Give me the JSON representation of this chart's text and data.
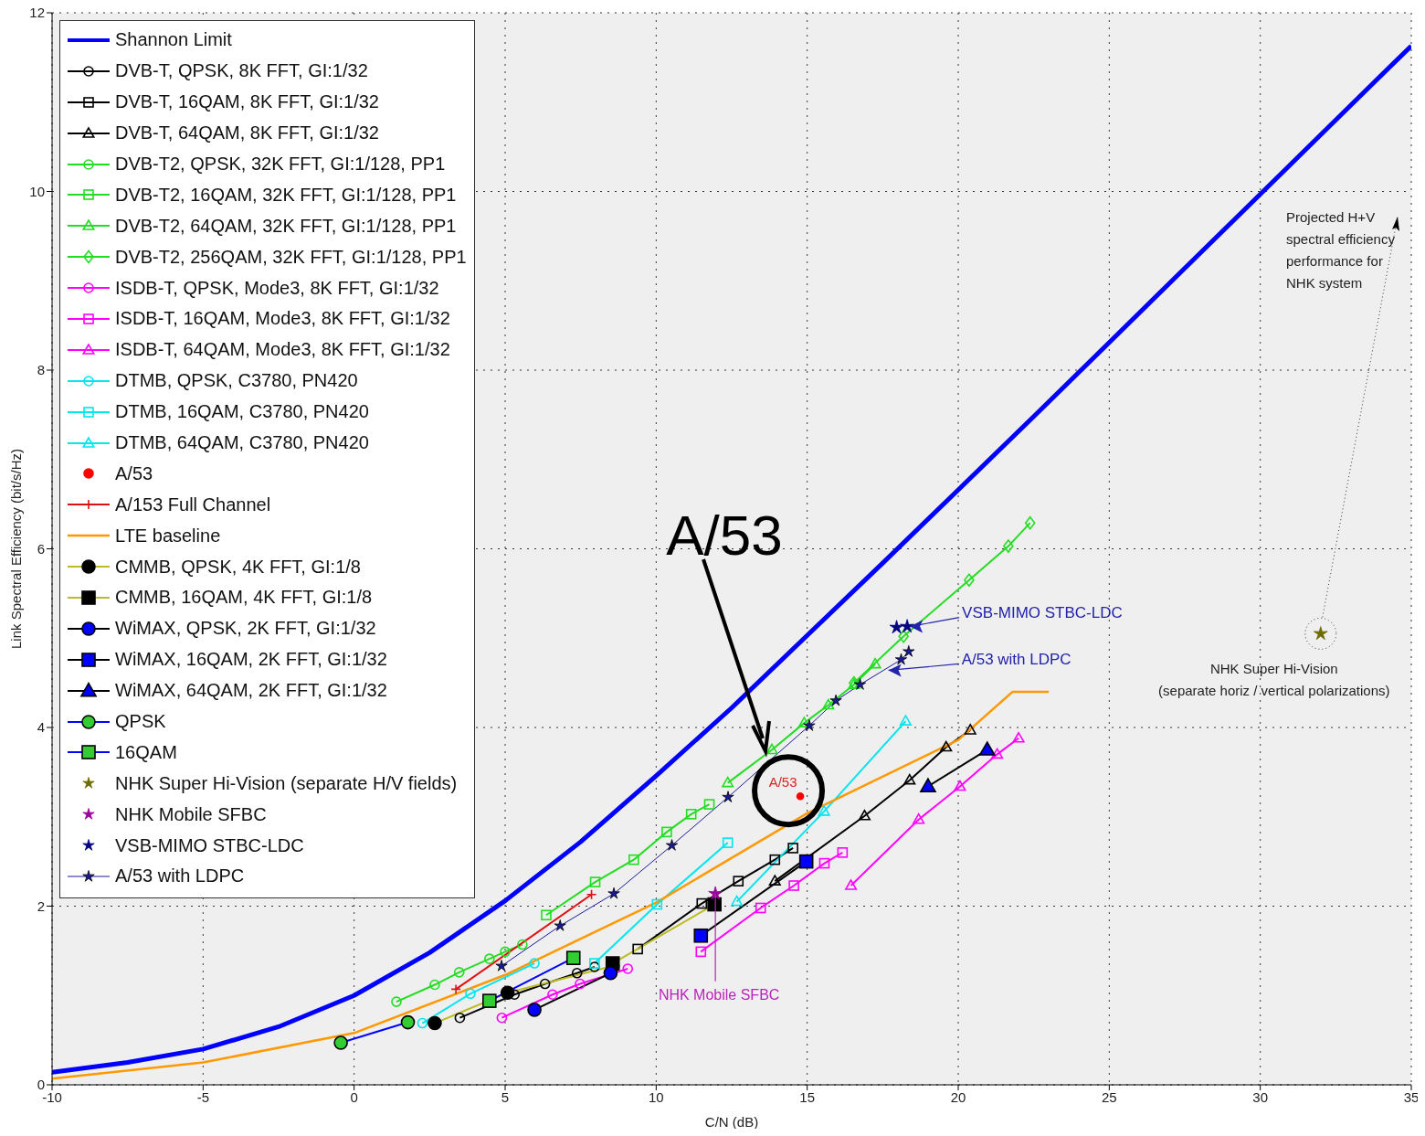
{
  "chart_data": {
    "type": "line",
    "xlabel": "C/N (dB)",
    "ylabel": "Link Spectral Efficiency (bit/s/Hz)",
    "xlim": [
      -10,
      35
    ],
    "ylim": [
      0,
      12
    ],
    "xticks": [
      -10,
      -5,
      0,
      5,
      10,
      15,
      20,
      25,
      30,
      35
    ],
    "yticks": [
      0,
      2,
      4,
      6,
      8,
      10,
      12
    ],
    "grid": true,
    "legend": "top left",
    "series": [
      {
        "name": "Shannon Limit",
        "color": "#0000ff",
        "marker": "none",
        "x": [
          -10,
          -7.5,
          -5,
          -2.5,
          0,
          2.5,
          5,
          7.5,
          10,
          12.5,
          15,
          17.5,
          20,
          22.5,
          25,
          27.5,
          30,
          32.5,
          35
        ],
        "values": [
          0.14,
          0.25,
          0.4,
          0.65,
          1.0,
          1.48,
          2.06,
          2.72,
          3.46,
          4.22,
          5.03,
          5.84,
          6.66,
          7.48,
          8.31,
          9.14,
          9.97,
          10.8,
          11.63
        ]
      },
      {
        "name": "DVB-T, QPSK, 8K FFT, GI:1/32",
        "color": "#000000",
        "marker": "circle",
        "x": [
          3.5,
          5.31,
          6.32,
          7.38,
          7.96
        ],
        "values": [
          0.75,
          1.01,
          1.13,
          1.25,
          1.32
        ]
      },
      {
        "name": "DVB-T, 16QAM, 8K FFT, GI:1/32",
        "color": "#000000",
        "marker": "square",
        "x": [
          9.39,
          11.51,
          12.72,
          13.93,
          14.53
        ],
        "values": [
          1.52,
          2.03,
          2.28,
          2.52,
          2.65
        ]
      },
      {
        "name": "DVB-T, 64QAM, 8K FFT, GI:1/32",
        "color": "#000000",
        "marker": "triangle",
        "x": [
          13.93,
          16.9,
          18.39,
          19.6,
          20.4
        ],
        "values": [
          2.28,
          3.01,
          3.41,
          3.78,
          3.97
        ]
      },
      {
        "name": "DVB-T2, QPSK, 32K FFT, GI:1/128, PP1",
        "color": "#22dd22",
        "marker": "circle",
        "x": [
          1.4,
          2.67,
          3.48,
          4.48,
          5.0,
          5.57
        ],
        "values": [
          0.93,
          1.12,
          1.26,
          1.41,
          1.49,
          1.57
        ]
      },
      {
        "name": "DVB-T2, 16QAM, 32K FFT, GI:1/128, PP1",
        "color": "#22dd22",
        "marker": "square",
        "x": [
          6.36,
          7.98,
          9.26,
          10.35,
          11.16,
          11.76
        ],
        "values": [
          1.9,
          2.27,
          2.52,
          2.83,
          3.03,
          3.14
        ]
      },
      {
        "name": "DVB-T2, 64QAM, 32K FFT, GI:1/128, PP1",
        "color": "#22dd22",
        "marker": "triangle",
        "x": [
          12.37,
          13.83,
          14.9,
          15.7,
          16.55,
          17.25
        ],
        "values": [
          3.38,
          3.75,
          4.05,
          4.25,
          4.48,
          4.71
        ]
      },
      {
        "name": "DVB-T2, 256QAM, 32K FFT, GI:1/128, PP1",
        "color": "#22dd22",
        "marker": "diamond",
        "x": [
          16.55,
          18.19,
          20.36,
          21.66,
          22.38
        ],
        "values": [
          4.5,
          5.02,
          5.65,
          6.03,
          6.29
        ]
      },
      {
        "name": "ISDB-T, QPSK, Mode3, 8K FFT, GI:1/32",
        "color": "#ff00ff",
        "marker": "circle",
        "x": [
          4.89,
          6.57,
          7.48,
          9.06
        ],
        "values": [
          0.75,
          1.01,
          1.13,
          1.3
        ]
      },
      {
        "name": "ISDB-T, 16QAM, Mode3, 8K FFT, GI:1/32",
        "color": "#ff00ff",
        "marker": "square",
        "x": [
          11.48,
          13.46,
          14.56,
          15.57,
          16.17
        ],
        "values": [
          1.49,
          1.98,
          2.23,
          2.48,
          2.6
        ]
      },
      {
        "name": "ISDB-T, 64QAM, Mode3, 8K FFT, GI:1/32",
        "color": "#ff00ff",
        "marker": "triangle",
        "x": [
          16.45,
          18.69,
          20.06,
          21.29,
          22.0
        ],
        "values": [
          2.23,
          2.97,
          3.34,
          3.7,
          3.88
        ]
      },
      {
        "name": "DTMB, QPSK, C3780, PN420",
        "color": "#00e5ee",
        "marker": "circle",
        "x": [
          2.26,
          3.85,
          5.97
        ],
        "values": [
          0.69,
          1.02,
          1.36
        ]
      },
      {
        "name": "DTMB, 16QAM, C3780, PN420",
        "color": "#00e5ee",
        "marker": "square",
        "x": [
          7.96,
          10.03,
          12.37
        ],
        "values": [
          1.36,
          2.02,
          2.71
        ]
      },
      {
        "name": "DTMB, 64QAM, C3780, PN420",
        "color": "#00e5ee",
        "marker": "triangle",
        "x": [
          12.67,
          15.56,
          18.26
        ],
        "values": [
          2.05,
          3.06,
          4.07
        ]
      },
      {
        "name": "A/53",
        "type": "scatter",
        "color": "#ff0000",
        "marker": "circle",
        "colors": [
          "#ff0000"
        ],
        "x": [
          14.77
        ],
        "values": [
          3.23
        ]
      },
      {
        "name": "A/153 Full Channel",
        "color": "#e01010",
        "marker": "cross",
        "x": [
          3.37,
          7.86
        ],
        "values": [
          1.07,
          2.13
        ]
      },
      {
        "name": "LTE baseline",
        "color": "#ff9900",
        "marker": "none",
        "x": [
          -10,
          -5,
          0,
          5,
          10,
          15,
          20,
          21.8,
          23
        ],
        "values": [
          0.07,
          0.25,
          0.58,
          1.23,
          2.04,
          3.04,
          3.86,
          4.4,
          4.4
        ]
      },
      {
        "name": "CMMB, QPSK, 4K FFT, GI:1/8",
        "color": "#bbbb22",
        "marker": "circle",
        "colors": [
          "#000000",
          "#000000",
          "#000000"
        ],
        "x": [
          2.67,
          5.08,
          8.56
        ],
        "values": [
          0.69,
          1.03,
          1.33
        ]
      },
      {
        "name": "CMMB, 16QAM, 4K FFT, GI:1/8",
        "color": "#bbbb22",
        "marker": "square",
        "colors": [
          "#000000",
          "#000000"
        ],
        "x": [
          8.56,
          11.93
        ],
        "values": [
          1.36,
          2.02
        ]
      },
      {
        "name": "WiMAX, QPSK, 2K FFT, GI:1/32",
        "color": "#000000",
        "marker": "circle",
        "colors": [
          "#0000ff",
          "#0000ff"
        ],
        "x": [
          5.97,
          8.49
        ],
        "values": [
          0.84,
          1.25
        ]
      },
      {
        "name": "WiMAX, 16QAM, 2K FFT, GI:1/32",
        "color": "#000000",
        "marker": "square",
        "colors": [
          "#0000ff",
          "#0000ff"
        ],
        "x": [
          11.48,
          14.97
        ],
        "values": [
          1.67,
          2.5
        ]
      },
      {
        "name": "WiMAX, 64QAM, 2K FFT, GI:1/32",
        "color": "#000000",
        "marker": "triangle",
        "colors": [
          "#0000ff",
          "#0000ff"
        ],
        "x": [
          19.0,
          20.96
        ],
        "values": [
          3.34,
          3.75
        ]
      },
      {
        "name": "QPSK",
        "color": "#0000ff",
        "marker": "circle",
        "colors": [
          "#33cc33",
          "#33cc33"
        ],
        "x": [
          -0.44,
          1.78
        ],
        "values": [
          0.47,
          0.7
        ]
      },
      {
        "name": "16QAM",
        "color": "#0000ff",
        "marker": "square",
        "colors": [
          "#33cc33",
          "#33cc33"
        ],
        "x": [
          4.48,
          7.26
        ],
        "values": [
          0.94,
          1.42
        ]
      },
      {
        "name": "NHK Super Hi-Vision (separate H/V fields)",
        "type": "scatter",
        "color": "#6b6b00",
        "marker": "star",
        "colors": [
          "#6b6b00"
        ],
        "x": [
          32.0
        ],
        "values": [
          5.05
        ]
      },
      {
        "name": "NHK Mobile SFBC",
        "type": "scatter",
        "color": "#990099",
        "marker": "star",
        "colors": [
          "#990099"
        ],
        "x": [
          11.96
        ],
        "values": [
          2.14
        ]
      },
      {
        "name": "VSB-MIMO STBC-LDC",
        "type": "scatter",
        "color": "#000080",
        "marker": "star",
        "colors": [
          "#000080",
          "#000080"
        ],
        "x": [
          17.96,
          18.31
        ],
        "values": [
          5.12,
          5.13
        ]
      },
      {
        "name": "A/53 with LDPC",
        "color": "#1a1a99",
        "marker": "star",
        "colors": [
          "#1a1a99",
          "#1a1a99",
          "#1a1a99",
          "#1a1a99",
          "#1a1a99",
          "#1a1a99",
          "#1a1a99",
          "#1a1a99",
          "#1a1a99",
          "#1a1a99"
        ],
        "x": [
          4.88,
          6.82,
          8.6,
          10.52,
          12.38,
          15.07,
          15.95,
          16.75,
          18.11,
          18.36
        ],
        "values": [
          1.33,
          1.78,
          2.14,
          2.68,
          3.22,
          4.02,
          4.3,
          4.48,
          4.76,
          4.85
        ]
      }
    ],
    "annotations": [
      "A/53",
      {
        "text": "A/53",
        "x": 14.77,
        "y": 3.23
      },
      {
        "text": "VSB-MIMO STBC-LDC",
        "x": 18.31,
        "y": 5.13
      },
      {
        "text": "A/53 with LDPC",
        "x": 17.6,
        "y": 4.64
      },
      {
        "text": "NHK Mobile SFBC",
        "x": 11.96,
        "y": 2.14
      },
      {
        "text": "NHK Super Hi-Vision\n(separate horiz / vertical polarizations)",
        "x": 32.0,
        "y": 5.05
      },
      "Projected H+V\nspectral efficiency\nperformance for\nNHK system"
    ]
  }
}
